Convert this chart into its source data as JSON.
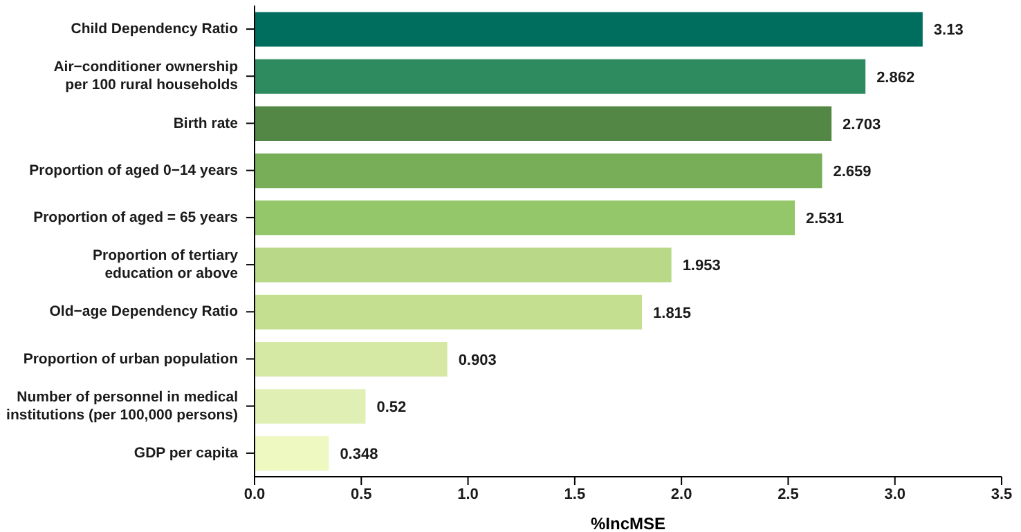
{
  "chart_data": {
    "type": "bar",
    "orientation": "horizontal",
    "xlabel": "%IncMSE",
    "categories": [
      "Child Dependency Ratio",
      "Air−conditioner ownership\nper 100 rural households",
      "Birth rate",
      "Proportion of aged 0−14 years",
      "Proportion of aged = 65 years",
      "Proportion of tertiary\neducation or above",
      "Old−age Dependency Ratio",
      "Proportion of urban population",
      "Number of personnel in medical\ninstitutions (per 100,000 persons)",
      "GDP per capita"
    ],
    "values": [
      3.13,
      2.862,
      2.703,
      2.659,
      2.531,
      1.953,
      1.815,
      0.903,
      0.52,
      0.348
    ],
    "colors": [
      "#006e5e",
      "#2e8a5f",
      "#528745",
      "#78ae58",
      "#93c76a",
      "#b9d988",
      "#c3df8f",
      "#d5e9a5",
      "#e0efb3",
      "#eef8c1"
    ],
    "data_labels": true,
    "xlim": [
      0,
      3.5
    ],
    "xticks": [
      {
        "value": 0,
        "label": "0.0"
      },
      0.5,
      {
        "value": 1,
        "label": "1.0"
      },
      1.5,
      {
        "value": 2,
        "label": "2.0"
      },
      2.5,
      {
        "value": 3,
        "label": "3.0"
      },
      3.5
    ]
  }
}
